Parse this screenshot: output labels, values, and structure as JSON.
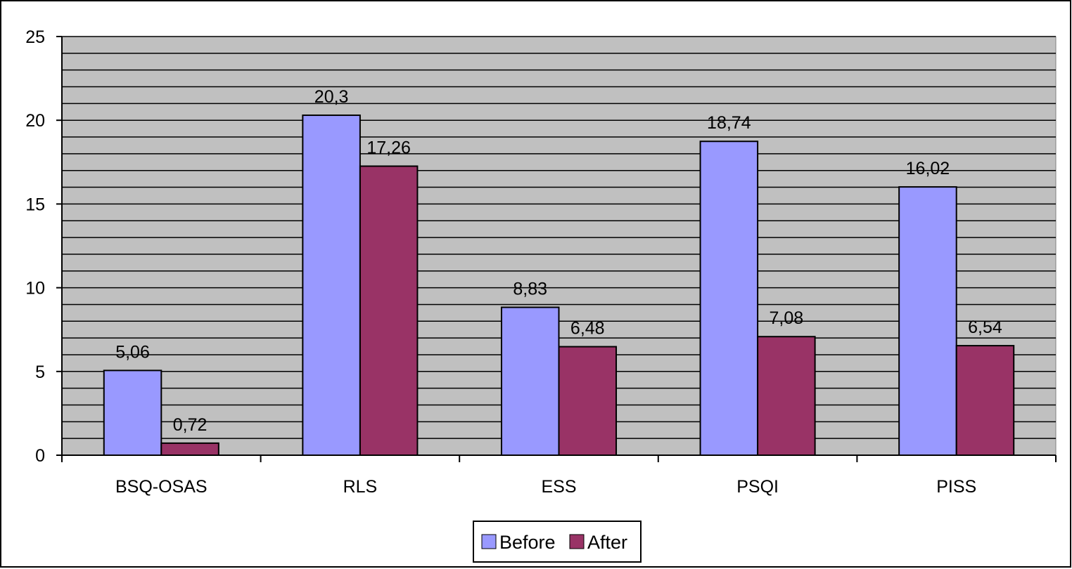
{
  "chart_data": {
    "type": "bar",
    "title": "",
    "xlabel": "",
    "ylabel": "",
    "categories": [
      "BSQ-OSAS",
      "RLS",
      "ESS",
      "PSQI",
      "PISS"
    ],
    "series": [
      {
        "name": "Before",
        "color": "#9999ff",
        "values": [
          5.06,
          20.3,
          8.83,
          18.74,
          16.02
        ],
        "labels": [
          "5,06",
          "20,3",
          "8,83",
          "18,74",
          "16,02"
        ]
      },
      {
        "name": "After",
        "color": "#993366",
        "values": [
          0.72,
          17.26,
          6.48,
          7.08,
          6.54
        ],
        "labels": [
          "0,72",
          "17,26",
          "6,48",
          "7,08",
          "6,54"
        ]
      }
    ],
    "ylim": [
      0,
      25
    ],
    "yticks": [
      0,
      5,
      10,
      15,
      20,
      25
    ],
    "minor_gridline_step": 1,
    "grid": true,
    "plot_background": "#c0c0c0",
    "legend": {
      "position": "bottom",
      "entries": [
        "Before",
        "After"
      ]
    }
  }
}
